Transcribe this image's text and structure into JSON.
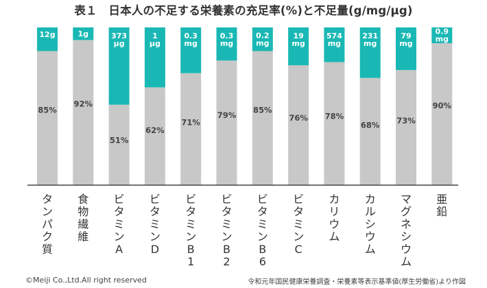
{
  "chart_data": {
    "type": "bar",
    "title": "表１　日本人の不足する栄養素の充足率(%)と不足量(g/mg/μg)",
    "xlabel": "",
    "ylabel": "",
    "ylim": [
      0,
      100
    ],
    "grid": false,
    "legend": "none",
    "categories": [
      "タンパク質",
      "食物繊維",
      "ビタミンA",
      "ビタミンD",
      "ビタミンB1",
      "ビタミンB2",
      "ビタミンB6",
      "ビタミンC",
      "カリウム",
      "カルシウム",
      "マグネシウム",
      "亜鉛"
    ],
    "series": [
      {
        "values": [
          85,
          92,
          51,
          62,
          71,
          79,
          85,
          76,
          78,
          68,
          73,
          90
        ],
        "labels": [
          "85%",
          "92%",
          "51%",
          "62%",
          "71%",
          "79%",
          "85%",
          "76%",
          "78%",
          "68%",
          "73%",
          "90%"
        ]
      },
      {
        "values": [
          15,
          8,
          49,
          38,
          29,
          21,
          15,
          24,
          22,
          32,
          27,
          10
        ],
        "labels": [
          "12g",
          "1g",
          "373 μg",
          "1 μg",
          "0.3 mg",
          "0.3 mg",
          "0.2 mg",
          "19 mg",
          "574 mg",
          "231 mg",
          "79 mg",
          "0.9 mg"
        ]
      }
    ]
  },
  "colors": {
    "fulfilled": "#c8c8c8",
    "shortfall": "#1ab8b4",
    "axis": "#444444",
    "shortfall_text": "#ffffff",
    "fulfilled_text": "#444444"
  },
  "footer": {
    "copyright": "©Meiji Co.,Ltd.All right reserved",
    "source": "令和元年国民健康栄養調査・栄養素等表示基準値(厚生労働省)より作図"
  }
}
